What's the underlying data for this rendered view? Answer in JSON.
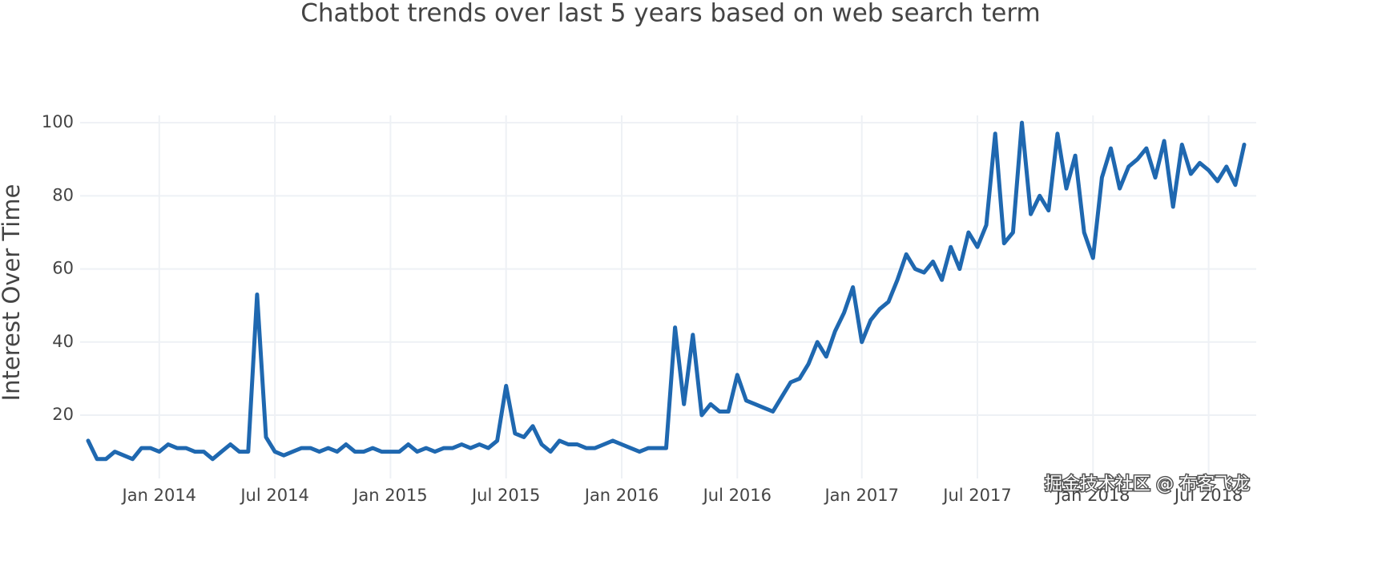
{
  "chart_data": {
    "type": "line",
    "title": "Chatbot trends over last 5 years based on web search term",
    "y_label": "Interest Over Time",
    "watermark": "掘金技术社区 @ 布客飞龙",
    "color": "#1f68b0",
    "grid": true,
    "ylim": [
      4,
      102
    ],
    "yticks": [
      20,
      40,
      60,
      80,
      100
    ],
    "categories": [
      null,
      null,
      null,
      null,
      null,
      null,
      null,
      null,
      "Jan 2014",
      null,
      null,
      null,
      null,
      null,
      null,
      null,
      null,
      null,
      null,
      null,
      null,
      "Jul 2014",
      null,
      null,
      null,
      null,
      null,
      null,
      null,
      null,
      null,
      null,
      null,
      null,
      "Jan 2015",
      null,
      null,
      null,
      null,
      null,
      null,
      null,
      null,
      null,
      null,
      null,
      null,
      "Jul 2015",
      null,
      null,
      null,
      null,
      null,
      null,
      null,
      null,
      null,
      null,
      null,
      null,
      "Jan 2016",
      null,
      null,
      null,
      null,
      null,
      null,
      null,
      null,
      null,
      null,
      null,
      null,
      "Jul 2016",
      null,
      null,
      null,
      null,
      null,
      null,
      null,
      null,
      null,
      null,
      null,
      null,
      null,
      "Jan 2017",
      null,
      null,
      null,
      null,
      null,
      null,
      null,
      null,
      null,
      null,
      null,
      null,
      "Jul 2017",
      null,
      null,
      null,
      null,
      null,
      null,
      null,
      null,
      null,
      null,
      null,
      null,
      "Jan 2018",
      null,
      null,
      null,
      null,
      null,
      null,
      null,
      null,
      null,
      null,
      null,
      null,
      "Jul 2018",
      null,
      null,
      null,
      null
    ],
    "values": [
      13,
      8,
      8,
      10,
      9,
      8,
      11,
      11,
      10,
      12,
      11,
      11,
      10,
      10,
      8,
      10,
      12,
      10,
      10,
      53,
      14,
      10,
      9,
      10,
      11,
      11,
      10,
      11,
      10,
      12,
      10,
      10,
      11,
      10,
      10,
      10,
      12,
      10,
      11,
      10,
      11,
      11,
      12,
      11,
      12,
      11,
      13,
      28,
      15,
      14,
      17,
      12,
      10,
      13,
      12,
      12,
      11,
      11,
      12,
      13,
      12,
      11,
      10,
      11,
      11,
      11,
      44,
      23,
      42,
      20,
      23,
      21,
      21,
      31,
      24,
      23,
      22,
      21,
      25,
      29,
      30,
      34,
      40,
      36,
      43,
      48,
      55,
      40,
      46,
      49,
      51,
      57,
      64,
      60,
      59,
      62,
      57,
      66,
      60,
      70,
      66,
      72,
      97,
      67,
      70,
      100,
      75,
      80,
      76,
      97,
      82,
      91,
      70,
      63,
      85,
      93,
      82,
      88,
      90,
      93,
      85,
      95,
      77,
      94,
      86,
      89,
      87,
      84,
      88,
      83,
      94
    ]
  }
}
